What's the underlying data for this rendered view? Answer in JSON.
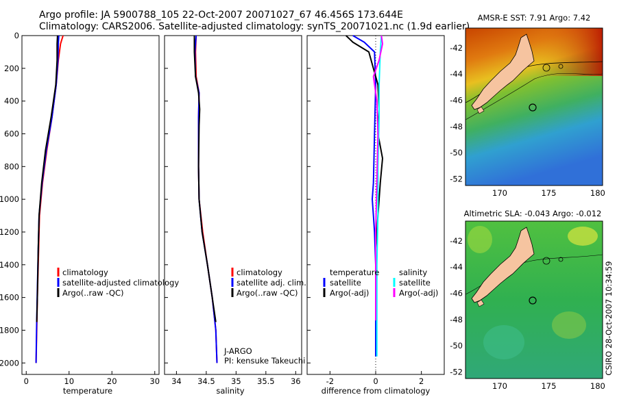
{
  "header": {
    "line1": "Argo profile: JA 5900788_105 22-Oct-2007 20071027_67 46.456S 173.644E",
    "line2": "Climatology: CARS2006. Satellite-adjusted climatology: synTS_20071021.nc (1.9d earlier)"
  },
  "side_label": "CSIRO 28-Oct-2007 10:34:59",
  "colors": {
    "climatology": "#ff0000",
    "satellite": "#0000ff",
    "argo": "#000000",
    "satellite_sal": "#00ffff",
    "argo_sal": "#ff00ff",
    "land": "#f6c4a0"
  },
  "chart_data": [
    {
      "type": "line",
      "id": "temperature",
      "xlabel": "temperature",
      "ylabel": "",
      "xlim": [
        -1,
        31
      ],
      "ylim": [
        2070,
        0
      ],
      "xticks": [
        0,
        10,
        20,
        30
      ],
      "xtick_labels": [
        "0",
        "10",
        "20",
        "30"
      ],
      "yticks": [
        0,
        200,
        400,
        600,
        800,
        1000,
        1200,
        1400,
        1600,
        1800,
        2000
      ],
      "ytick_labels": [
        "0",
        "200",
        "400",
        "600",
        "800",
        "1000",
        "1200",
        "1400",
        "1600",
        "1800",
        "2000"
      ],
      "legend": [
        "climatology",
        "satellite-adjusted climatology",
        "Argo(..raw -QC)"
      ],
      "series": [
        {
          "name": "climatology",
          "color": "#ff0000",
          "x": [
            8.6,
            8.0,
            7.5,
            7.0,
            6.0,
            4.8,
            3.8,
            3.1,
            2.9,
            2.6,
            2.45,
            2.3
          ],
          "y": [
            0,
            50,
            150,
            300,
            500,
            700,
            900,
            1100,
            1300,
            1600,
            1800,
            2000
          ]
        },
        {
          "name": "satellite-adjusted climatology",
          "color": "#0000ff",
          "x": [
            7.6,
            7.5,
            7.4,
            7.0,
            6.0,
            4.7,
            3.7,
            3.0,
            2.8,
            2.55,
            2.4,
            2.3
          ],
          "y": [
            0,
            50,
            150,
            300,
            500,
            700,
            900,
            1100,
            1300,
            1600,
            1800,
            2000
          ]
        },
        {
          "name": "Argo(..raw -QC)",
          "color": "#000000",
          "x": [
            7.3,
            7.2,
            7.2,
            6.9,
            5.8,
            4.5,
            3.6,
            3.0,
            2.8,
            2.6,
            2.45
          ],
          "y": [
            0,
            50,
            150,
            300,
            500,
            700,
            900,
            1100,
            1300,
            1600,
            1750
          ]
        }
      ]
    },
    {
      "type": "line",
      "id": "salinity",
      "xlabel": "salinity",
      "xlim": [
        33.8,
        36.1
      ],
      "ylim": [
        2070,
        0
      ],
      "xticks": [
        34,
        34.5,
        35,
        35.5,
        36
      ],
      "xtick_labels": [
        "34",
        "34.5",
        "35",
        "35.5",
        "36"
      ],
      "legend": [
        "climatology",
        "satellite adj. clim.",
        "Argo(..raw -QC)"
      ],
      "annotation": [
        "J-ARGO",
        "PI: kensuke Takeuchi"
      ],
      "series": [
        {
          "name": "climatology",
          "color": "#ff0000",
          "x": [
            34.33,
            34.32,
            34.33,
            34.38,
            34.37,
            34.37,
            34.38,
            34.44,
            34.52,
            34.6,
            34.66,
            34.68
          ],
          "y": [
            0,
            100,
            250,
            350,
            500,
            800,
            1000,
            1200,
            1400,
            1600,
            1800,
            2000
          ]
        },
        {
          "name": "satellite adj. clim.",
          "color": "#0000ff",
          "x": [
            34.33,
            34.31,
            34.32,
            34.38,
            34.37,
            34.37,
            34.38,
            34.43,
            34.52,
            34.6,
            34.66,
            34.68
          ],
          "y": [
            0,
            100,
            250,
            350,
            500,
            800,
            1000,
            1200,
            1400,
            1600,
            1800,
            2000
          ]
        },
        {
          "name": "Argo(..raw -QC)",
          "color": "#000000",
          "x": [
            34.3,
            34.3,
            34.32,
            34.37,
            34.39,
            34.38,
            34.37,
            34.38,
            34.43,
            34.52,
            34.6,
            34.66
          ],
          "y": [
            0,
            100,
            250,
            350,
            450,
            550,
            800,
            1000,
            1200,
            1400,
            1600,
            1750
          ]
        }
      ]
    },
    {
      "type": "line",
      "id": "difference",
      "xlabel": "difference from climatology",
      "xlim": [
        -3,
        3
      ],
      "ylim": [
        2070,
        0
      ],
      "xticks": [
        -2,
        0,
        2
      ],
      "xtick_labels": [
        "-2",
        "0",
        "2"
      ],
      "legend_temperature": {
        "title": "temperature",
        "items": [
          "satellite",
          "Argo(-adj)"
        ]
      },
      "legend_salinity": {
        "title": "salinity",
        "items": [
          "satellite",
          "Argo(-adj)"
        ]
      },
      "series": [
        {
          "name": "temperature satellite",
          "color": "#0000ff",
          "x": [
            -1.0,
            -0.5,
            -0.05,
            0.0,
            -0.05,
            -0.1,
            -0.15,
            -0.1,
            -0.05,
            0.0,
            0.0,
            0.0,
            0.0
          ],
          "y": [
            0,
            40,
            100,
            300,
            600,
            900,
            1000,
            1100,
            1200,
            1400,
            1600,
            1800,
            1960
          ]
        },
        {
          "name": "temperature Argo(-adj)",
          "color": "#000000",
          "x": [
            -1.3,
            -1.0,
            -0.3,
            0.1,
            0.15,
            0.1,
            0.3,
            0.2,
            0.1,
            0.0,
            0.0,
            0.0
          ],
          "y": [
            0,
            40,
            100,
            300,
            450,
            600,
            750,
            900,
            1100,
            1300,
            1600,
            1740
          ]
        },
        {
          "name": "salinity satellite",
          "color": "#00ffff",
          "x": [
            0.25,
            0.2,
            0.15,
            0.15,
            0.1,
            0.1,
            0.05,
            0.05,
            0.05
          ],
          "y": [
            0,
            100,
            300,
            500,
            800,
            1100,
            1400,
            1700,
            1960
          ]
        },
        {
          "name": "salinity Argo(-adj)",
          "color": "#ff00ff",
          "x": [
            0.25,
            0.3,
            0.15,
            -0.1,
            0.05,
            0.1,
            0.05,
            0.0,
            0.0,
            0.0
          ],
          "y": [
            0,
            50,
            150,
            250,
            400,
            600,
            900,
            1200,
            1500,
            1740
          ]
        }
      ]
    },
    {
      "type": "heatmap",
      "id": "sst_map",
      "title": "AMSR-E SST: 7.91 Argo: 7.42",
      "xlim": [
        166.5,
        180.5
      ],
      "ylim": [
        -52.5,
        -40.5
      ],
      "xticks": [
        170,
        175,
        180
      ],
      "xtick_labels": [
        "170",
        "175",
        "180"
      ],
      "yticks": [
        -42,
        -44,
        -46,
        -48,
        -50,
        -52
      ],
      "ytick_labels": [
        "-42",
        "-44",
        "-46",
        "-48",
        "-50",
        "-52"
      ],
      "argo_position": {
        "lon": 173.644,
        "lat": -46.456
      }
    },
    {
      "type": "heatmap",
      "id": "sla_map",
      "title": "Altimetric SLA: -0.043 Argo: -0.012",
      "xlim": [
        166.5,
        180.5
      ],
      "ylim": [
        -52.5,
        -40.5
      ],
      "xticks": [
        170,
        175,
        180
      ],
      "xtick_labels": [
        "170",
        "175",
        "180"
      ],
      "yticks": [
        -42,
        -44,
        -46,
        -48,
        -50,
        -52
      ],
      "ytick_labels": [
        "-42",
        "-44",
        "-46",
        "-48",
        "-50",
        "-52"
      ],
      "argo_position": {
        "lon": 173.644,
        "lat": -46.456
      }
    }
  ]
}
